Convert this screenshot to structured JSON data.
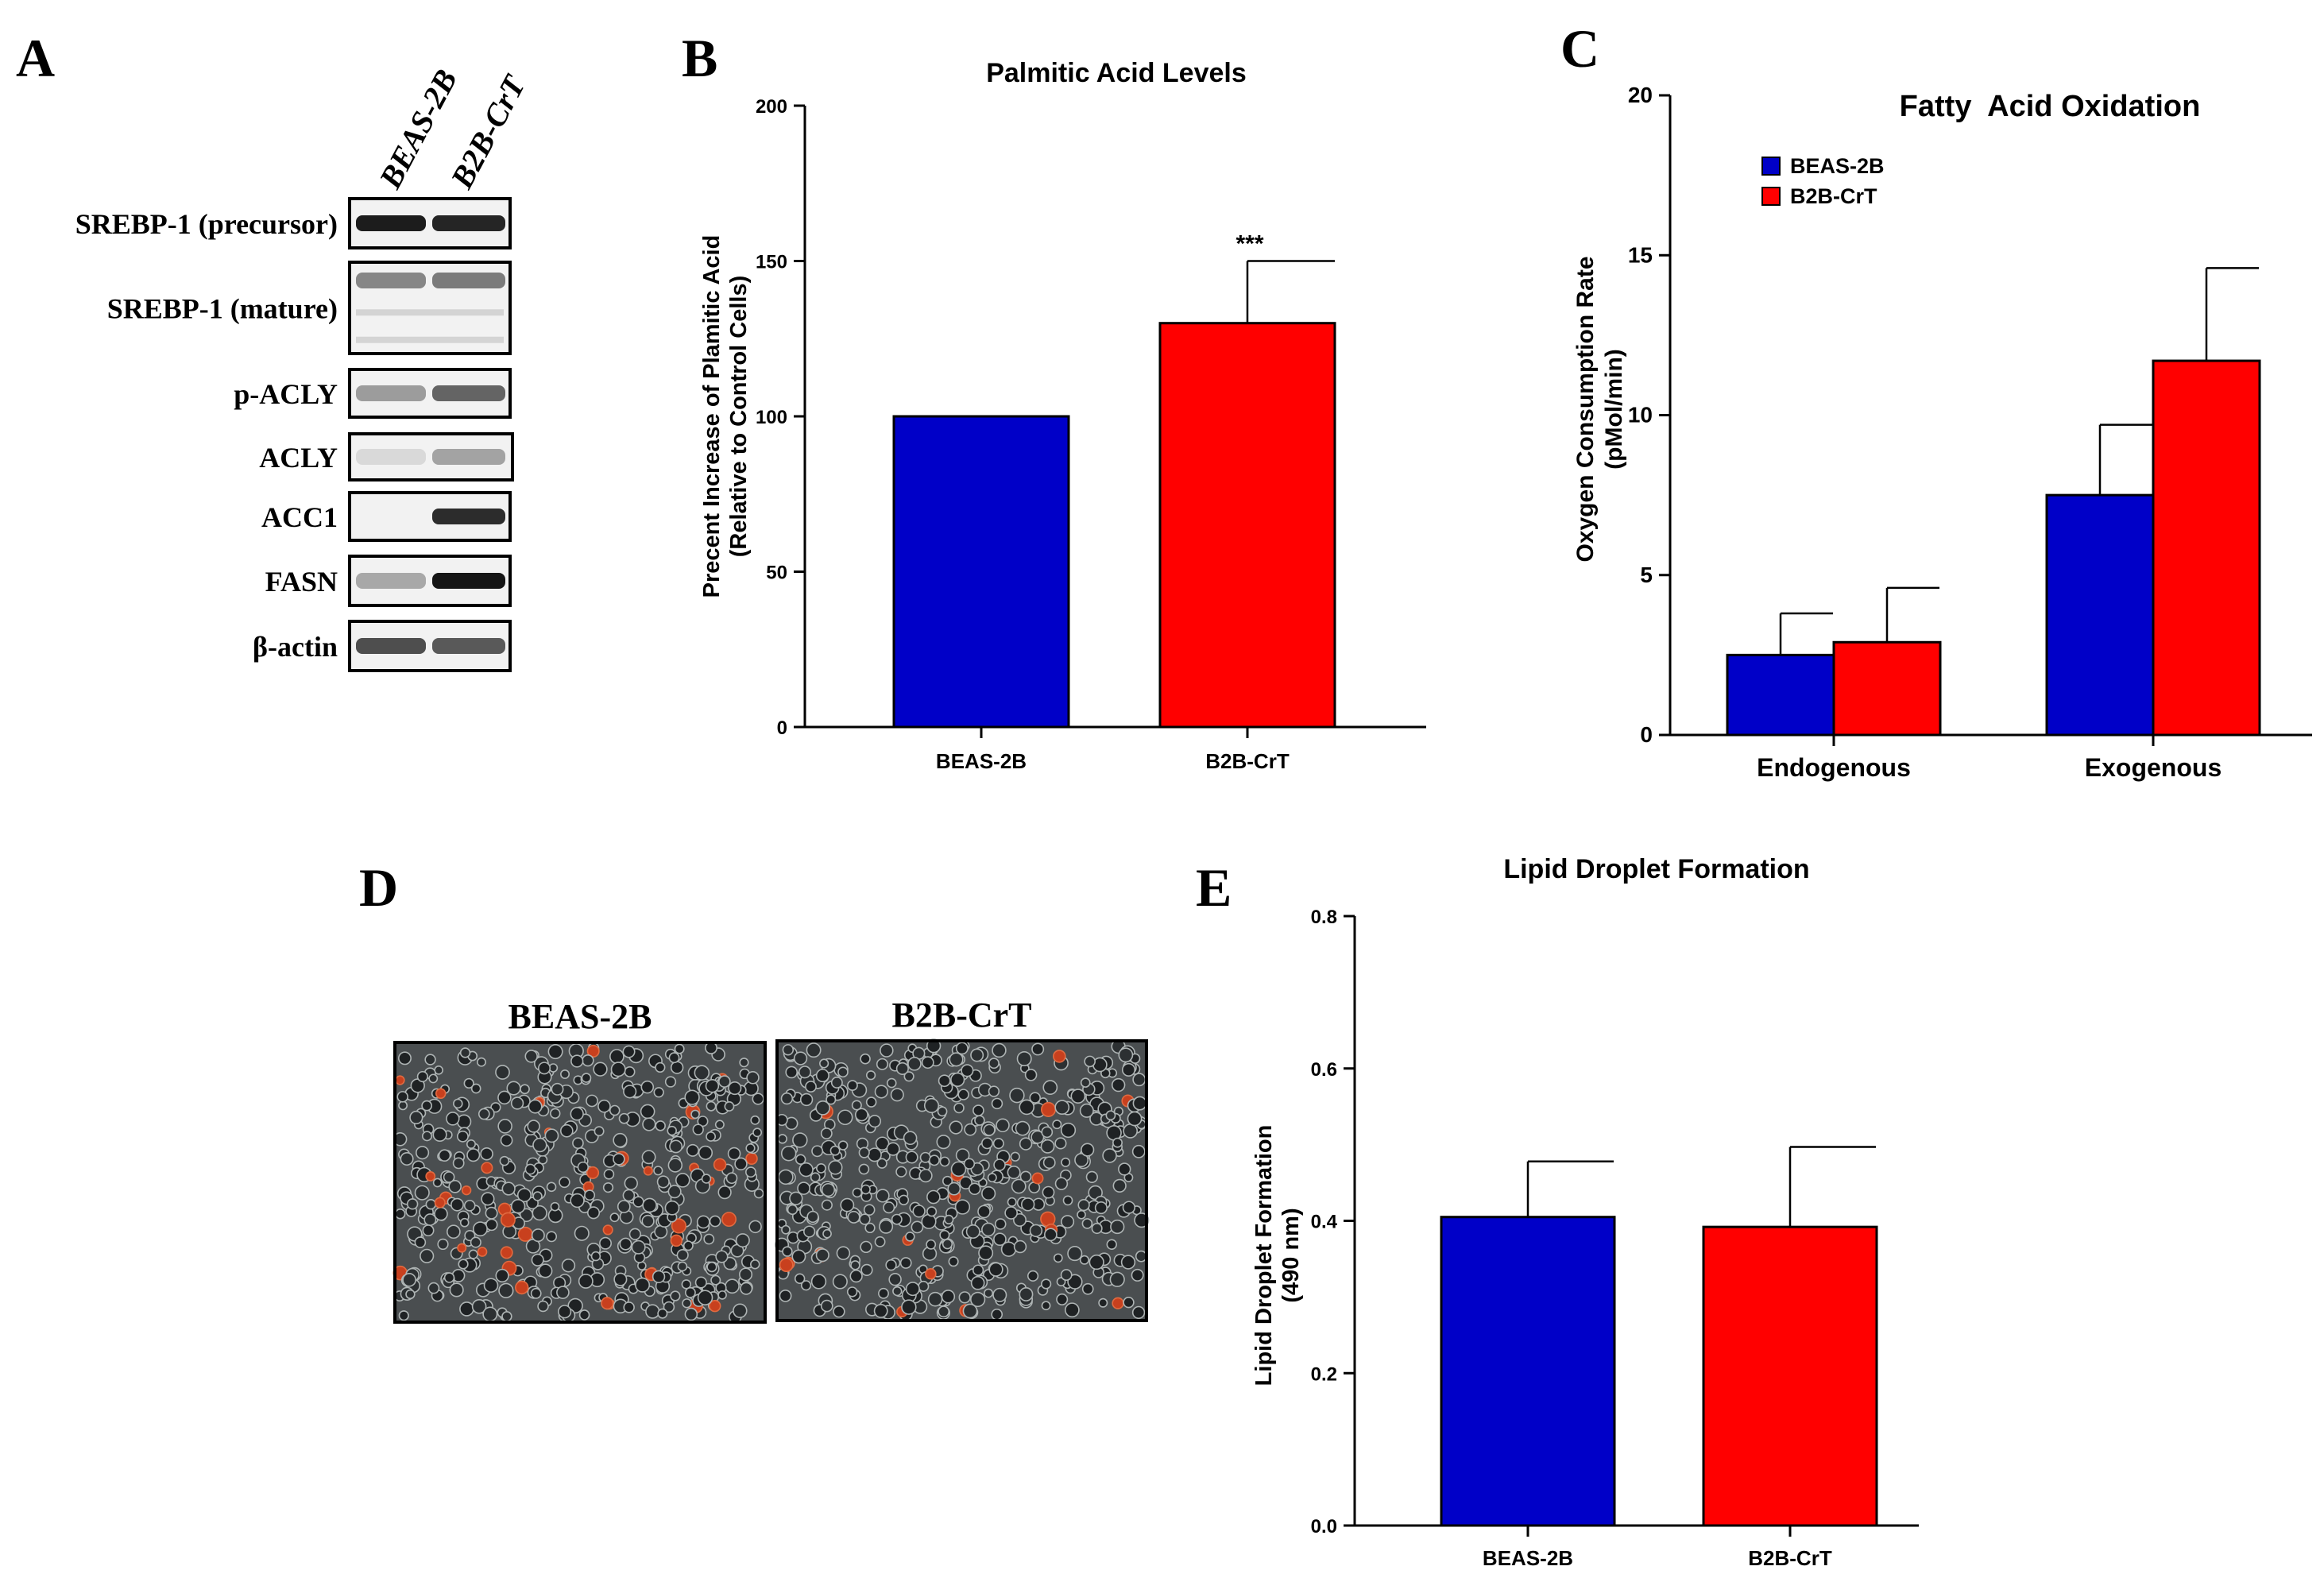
{
  "panels": {
    "A": "A",
    "B": "B",
    "C": "C",
    "D": "D",
    "E": "E"
  },
  "western_blot": {
    "lanes": [
      "BEAS-2B",
      "B2B-CrT"
    ],
    "bands": [
      {
        "label": "SREBP-1 (precursor)",
        "intensities": [
          0.92,
          0.88
        ]
      },
      {
        "label": "SREBP-1 (mature)",
        "intensities": [
          0.45,
          0.5
        ]
      },
      {
        "label": "p-ACLY",
        "intensities": [
          0.35,
          0.6
        ]
      },
      {
        "label": "ACLY",
        "intensities": [
          0.08,
          0.32
        ]
      },
      {
        "label": "ACC1",
        "intensities": [
          0.0,
          0.85
        ]
      },
      {
        "label": "FASN",
        "intensities": [
          0.3,
          0.95
        ]
      },
      {
        "label": "β-actin",
        "intensities": [
          0.7,
          0.65
        ]
      }
    ]
  },
  "microscopy": {
    "labels": [
      "BEAS-2B",
      "B2B-CrT"
    ],
    "red_stain_fraction": [
      0.06,
      0.03
    ]
  },
  "colors": {
    "beas": "#0000c8",
    "crt": "#ff0000",
    "axis": "#000000"
  },
  "chart_data": [
    {
      "id": "B",
      "type": "bar",
      "title": "Palmitic Acid Levels",
      "ylabel": [
        "Precent Increase of Plamitic Acid",
        "(Relative to Control Cells)"
      ],
      "xlabel": "",
      "categories": [
        "BEAS-2B",
        "B2B-CrT"
      ],
      "values": [
        100,
        130
      ],
      "errors": [
        0,
        20
      ],
      "annotations": [
        "",
        "***"
      ],
      "ylim": [
        0,
        200
      ],
      "yticks": [
        0,
        50,
        100,
        150,
        200
      ],
      "ytick_labels": [
        "0",
        "50",
        "100",
        "150",
        "200"
      ]
    },
    {
      "id": "C",
      "type": "bar",
      "title": "Fatty  Acid Oxidation",
      "ylabel": [
        "Oxygen Consumption Rate",
        "(pMol/min)"
      ],
      "xlabel": "",
      "categories": [
        "Endogenous",
        "Exogenous"
      ],
      "series": [
        {
          "name": "BEAS-2B",
          "values": [
            2.5,
            7.5
          ],
          "errors": [
            1.3,
            2.2
          ]
        },
        {
          "name": "B2B-CrT",
          "values": [
            2.9,
            11.7
          ],
          "errors": [
            1.7,
            2.9
          ]
        }
      ],
      "legend_position": "top-left",
      "ylim": [
        0,
        20
      ],
      "yticks": [
        0,
        5,
        10,
        15,
        20
      ],
      "ytick_labels": [
        "0",
        "5",
        "10",
        "15",
        "20"
      ]
    },
    {
      "id": "E",
      "type": "bar",
      "title": "Lipid Droplet Formation",
      "ylabel": [
        "Lipid Droplet Formation",
        "(490 nm)"
      ],
      "xlabel": "",
      "categories": [
        "BEAS-2B",
        "B2B-CrT"
      ],
      "values": [
        0.405,
        0.392
      ],
      "errors": [
        0.073,
        0.105
      ],
      "ylim": [
        0,
        0.8
      ],
      "yticks": [
        0,
        0.2,
        0.4,
        0.6,
        0.8
      ],
      "ytick_labels": [
        "0.0",
        "0.2",
        "0.4",
        "0.6",
        "0.8"
      ]
    }
  ]
}
